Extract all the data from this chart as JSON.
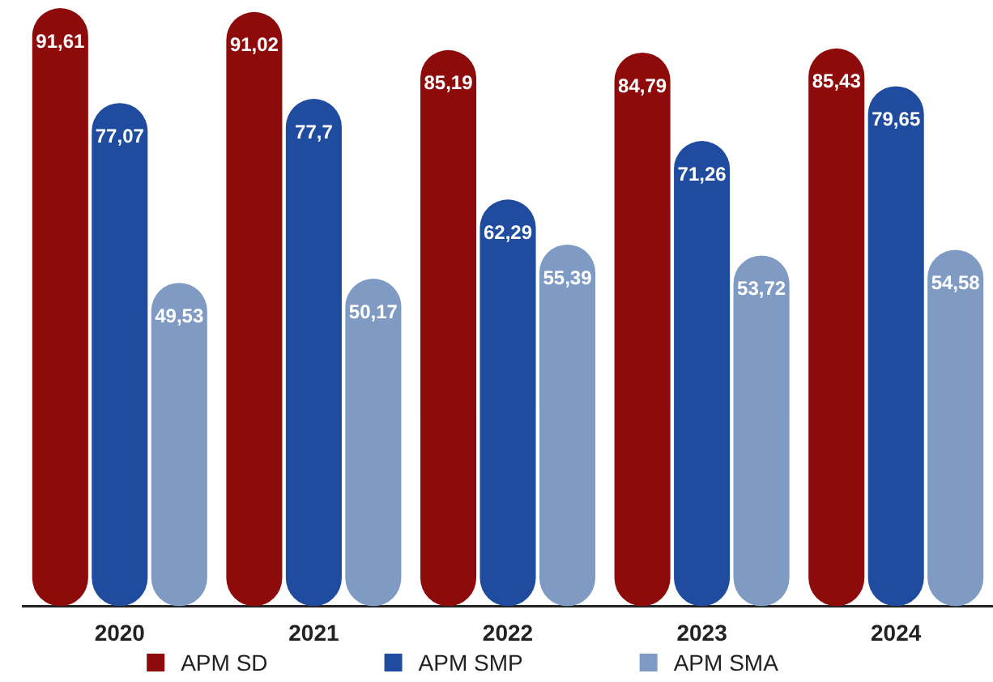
{
  "chart_data": {
    "type": "bar",
    "categories": [
      "2020",
      "2021",
      "2022",
      "2023",
      "2024"
    ],
    "series": [
      {
        "name": "APM SD",
        "color": "#8e0b0b",
        "values": [
          91.61,
          91.02,
          85.19,
          84.79,
          85.43
        ],
        "value_labels": [
          "91,61",
          "91,02",
          "85,19",
          "84,79",
          "85,43"
        ]
      },
      {
        "name": "APM SMP",
        "color": "#1f4c9f",
        "values": [
          77.07,
          77.7,
          62.29,
          71.26,
          79.65
        ],
        "value_labels": [
          "77,07",
          "77,7",
          "62,29",
          "71,26",
          "79,65"
        ]
      },
      {
        "name": "APM SMA",
        "color": "#7f9bc3",
        "values": [
          49.53,
          50.17,
          55.39,
          53.72,
          54.58
        ],
        "value_labels": [
          "49,53",
          "50,17",
          "55,39",
          "53,72",
          "54,58"
        ]
      }
    ],
    "legend": "bottom"
  }
}
